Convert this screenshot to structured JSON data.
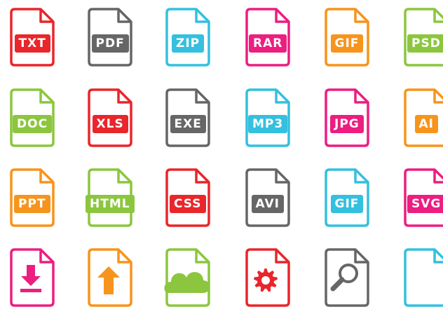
{
  "icons": [
    {
      "label": "TXT",
      "color": "#e8262b",
      "glyph": "none"
    },
    {
      "label": "PDF",
      "color": "#666666",
      "glyph": "none"
    },
    {
      "label": "ZIP",
      "color": "#34c0de",
      "glyph": "none"
    },
    {
      "label": "RAR",
      "color": "#ec1e80",
      "glyph": "none"
    },
    {
      "label": "GIF",
      "color": "#f7941d",
      "glyph": "none"
    },
    {
      "label": "PSD",
      "color": "#8cc63f",
      "glyph": "none"
    },
    {
      "label": "DOC",
      "color": "#8cc63f",
      "glyph": "none"
    },
    {
      "label": "XLS",
      "color": "#e8262b",
      "glyph": "none"
    },
    {
      "label": "EXE",
      "color": "#666666",
      "glyph": "none"
    },
    {
      "label": "MP3",
      "color": "#34c0de",
      "glyph": "none"
    },
    {
      "label": "JPG",
      "color": "#ec1e80",
      "glyph": "none"
    },
    {
      "label": "AI",
      "color": "#f7941d",
      "glyph": "none"
    },
    {
      "label": "PPT",
      "color": "#f7941d",
      "glyph": "none"
    },
    {
      "label": "HTML",
      "color": "#8cc63f",
      "glyph": "none"
    },
    {
      "label": "CSS",
      "color": "#e8262b",
      "glyph": "none"
    },
    {
      "label": "AVI",
      "color": "#666666",
      "glyph": "none"
    },
    {
      "label": "GIF",
      "color": "#34c0de",
      "glyph": "none"
    },
    {
      "label": "SVG",
      "color": "#ec1e80",
      "glyph": "none"
    },
    {
      "label": "",
      "color": "#ec1e80",
      "glyph": "download-arrow-icon"
    },
    {
      "label": "",
      "color": "#f7941d",
      "glyph": "upload-arrow-icon"
    },
    {
      "label": "",
      "color": "#8cc63f",
      "glyph": "cloud-icon"
    },
    {
      "label": "",
      "color": "#e8262b",
      "glyph": "gear-icon"
    },
    {
      "label": "",
      "color": "#666666",
      "glyph": "magnifier-icon"
    },
    {
      "label": "",
      "color": "#34c0de",
      "glyph": "none"
    }
  ]
}
